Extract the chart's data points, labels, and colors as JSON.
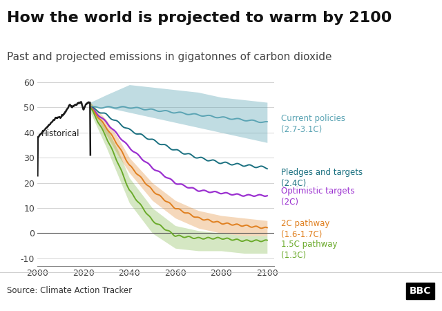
{
  "title": "How the world is projected to warm by 2100",
  "subtitle": "Past and projected emissions in gigatonnes of carbon dioxide",
  "source": "Source: Climate Action Tracker",
  "bbc_logo": "BBC",
  "xlim": [
    2000,
    2103
  ],
  "ylim": [
    -13,
    63
  ],
  "yticks": [
    -10,
    0,
    10,
    20,
    30,
    40,
    50,
    60
  ],
  "xticks": [
    2000,
    2020,
    2040,
    2060,
    2080,
    2100
  ],
  "bg_color": "#ffffff",
  "plot_bg": "#ffffff",
  "title_fontsize": 16,
  "subtitle_fontsize": 11,
  "label_fontsize": 8.5,
  "colors": {
    "historical": "#1a1a1a",
    "current_policies": "#5ba4b4",
    "pledges": "#1a7080",
    "optimistic": "#9b30d0",
    "pathway_2c": "#e08020",
    "pathway_15c": "#6aaa2a"
  },
  "labels": {
    "historical": "Historical",
    "current_policies": "Current policies\n(2.7-3.1C)",
    "pledges": "Pledges and targets\n(2.4C)",
    "optimistic": "Optimistic targets\n(2C)",
    "pathway_2c": "2C pathway\n(1.6-1.7C)",
    "pathway_15c": "1.5C pathway\n(1.3C)"
  },
  "hist_years": [
    2000,
    2002,
    2004,
    2006,
    2008,
    2010,
    2012,
    2014,
    2015,
    2016,
    2017,
    2018,
    2019,
    2020,
    2021,
    2022,
    2023
  ],
  "hist_vals": [
    38,
    40,
    42,
    44,
    46,
    46,
    48,
    51,
    50,
    51,
    51,
    52,
    52,
    49,
    51,
    52,
    52
  ],
  "proj_years": [
    2023,
    2030,
    2035,
    2040,
    2050,
    2060,
    2070,
    2080,
    2090,
    2100
  ],
  "curr_center": [
    50,
    50,
    50,
    50,
    49,
    48,
    47,
    46,
    45,
    44
  ],
  "curr_upper": [
    52,
    55,
    57,
    59,
    58,
    57,
    56,
    54,
    53,
    52
  ],
  "curr_lower": [
    50,
    50,
    49,
    48,
    46,
    44,
    42,
    40,
    38,
    36
  ],
  "pledges": [
    50,
    47,
    44,
    41,
    37,
    33,
    30,
    28,
    27,
    26
  ],
  "optimistic": [
    50,
    44,
    39,
    34,
    26,
    20,
    17,
    16,
    15,
    15
  ],
  "p2c": [
    50,
    42,
    35,
    27,
    17,
    10,
    6,
    4,
    3,
    2
  ],
  "p2c_upper": [
    52,
    45,
    38,
    30,
    20,
    13,
    9,
    7,
    6,
    5
  ],
  "p2c_lower": [
    50,
    39,
    31,
    24,
    13,
    6,
    2,
    0,
    -1,
    -1
  ],
  "p15c": [
    50,
    38,
    28,
    17,
    5,
    -1,
    -2,
    -2,
    -3,
    -3
  ],
  "p15c_upper": [
    52,
    42,
    33,
    22,
    10,
    3,
    1,
    0,
    -1,
    -1
  ],
  "p15c_lower": [
    48,
    34,
    23,
    12,
    0,
    -6,
    -7,
    -7,
    -8,
    -8
  ]
}
